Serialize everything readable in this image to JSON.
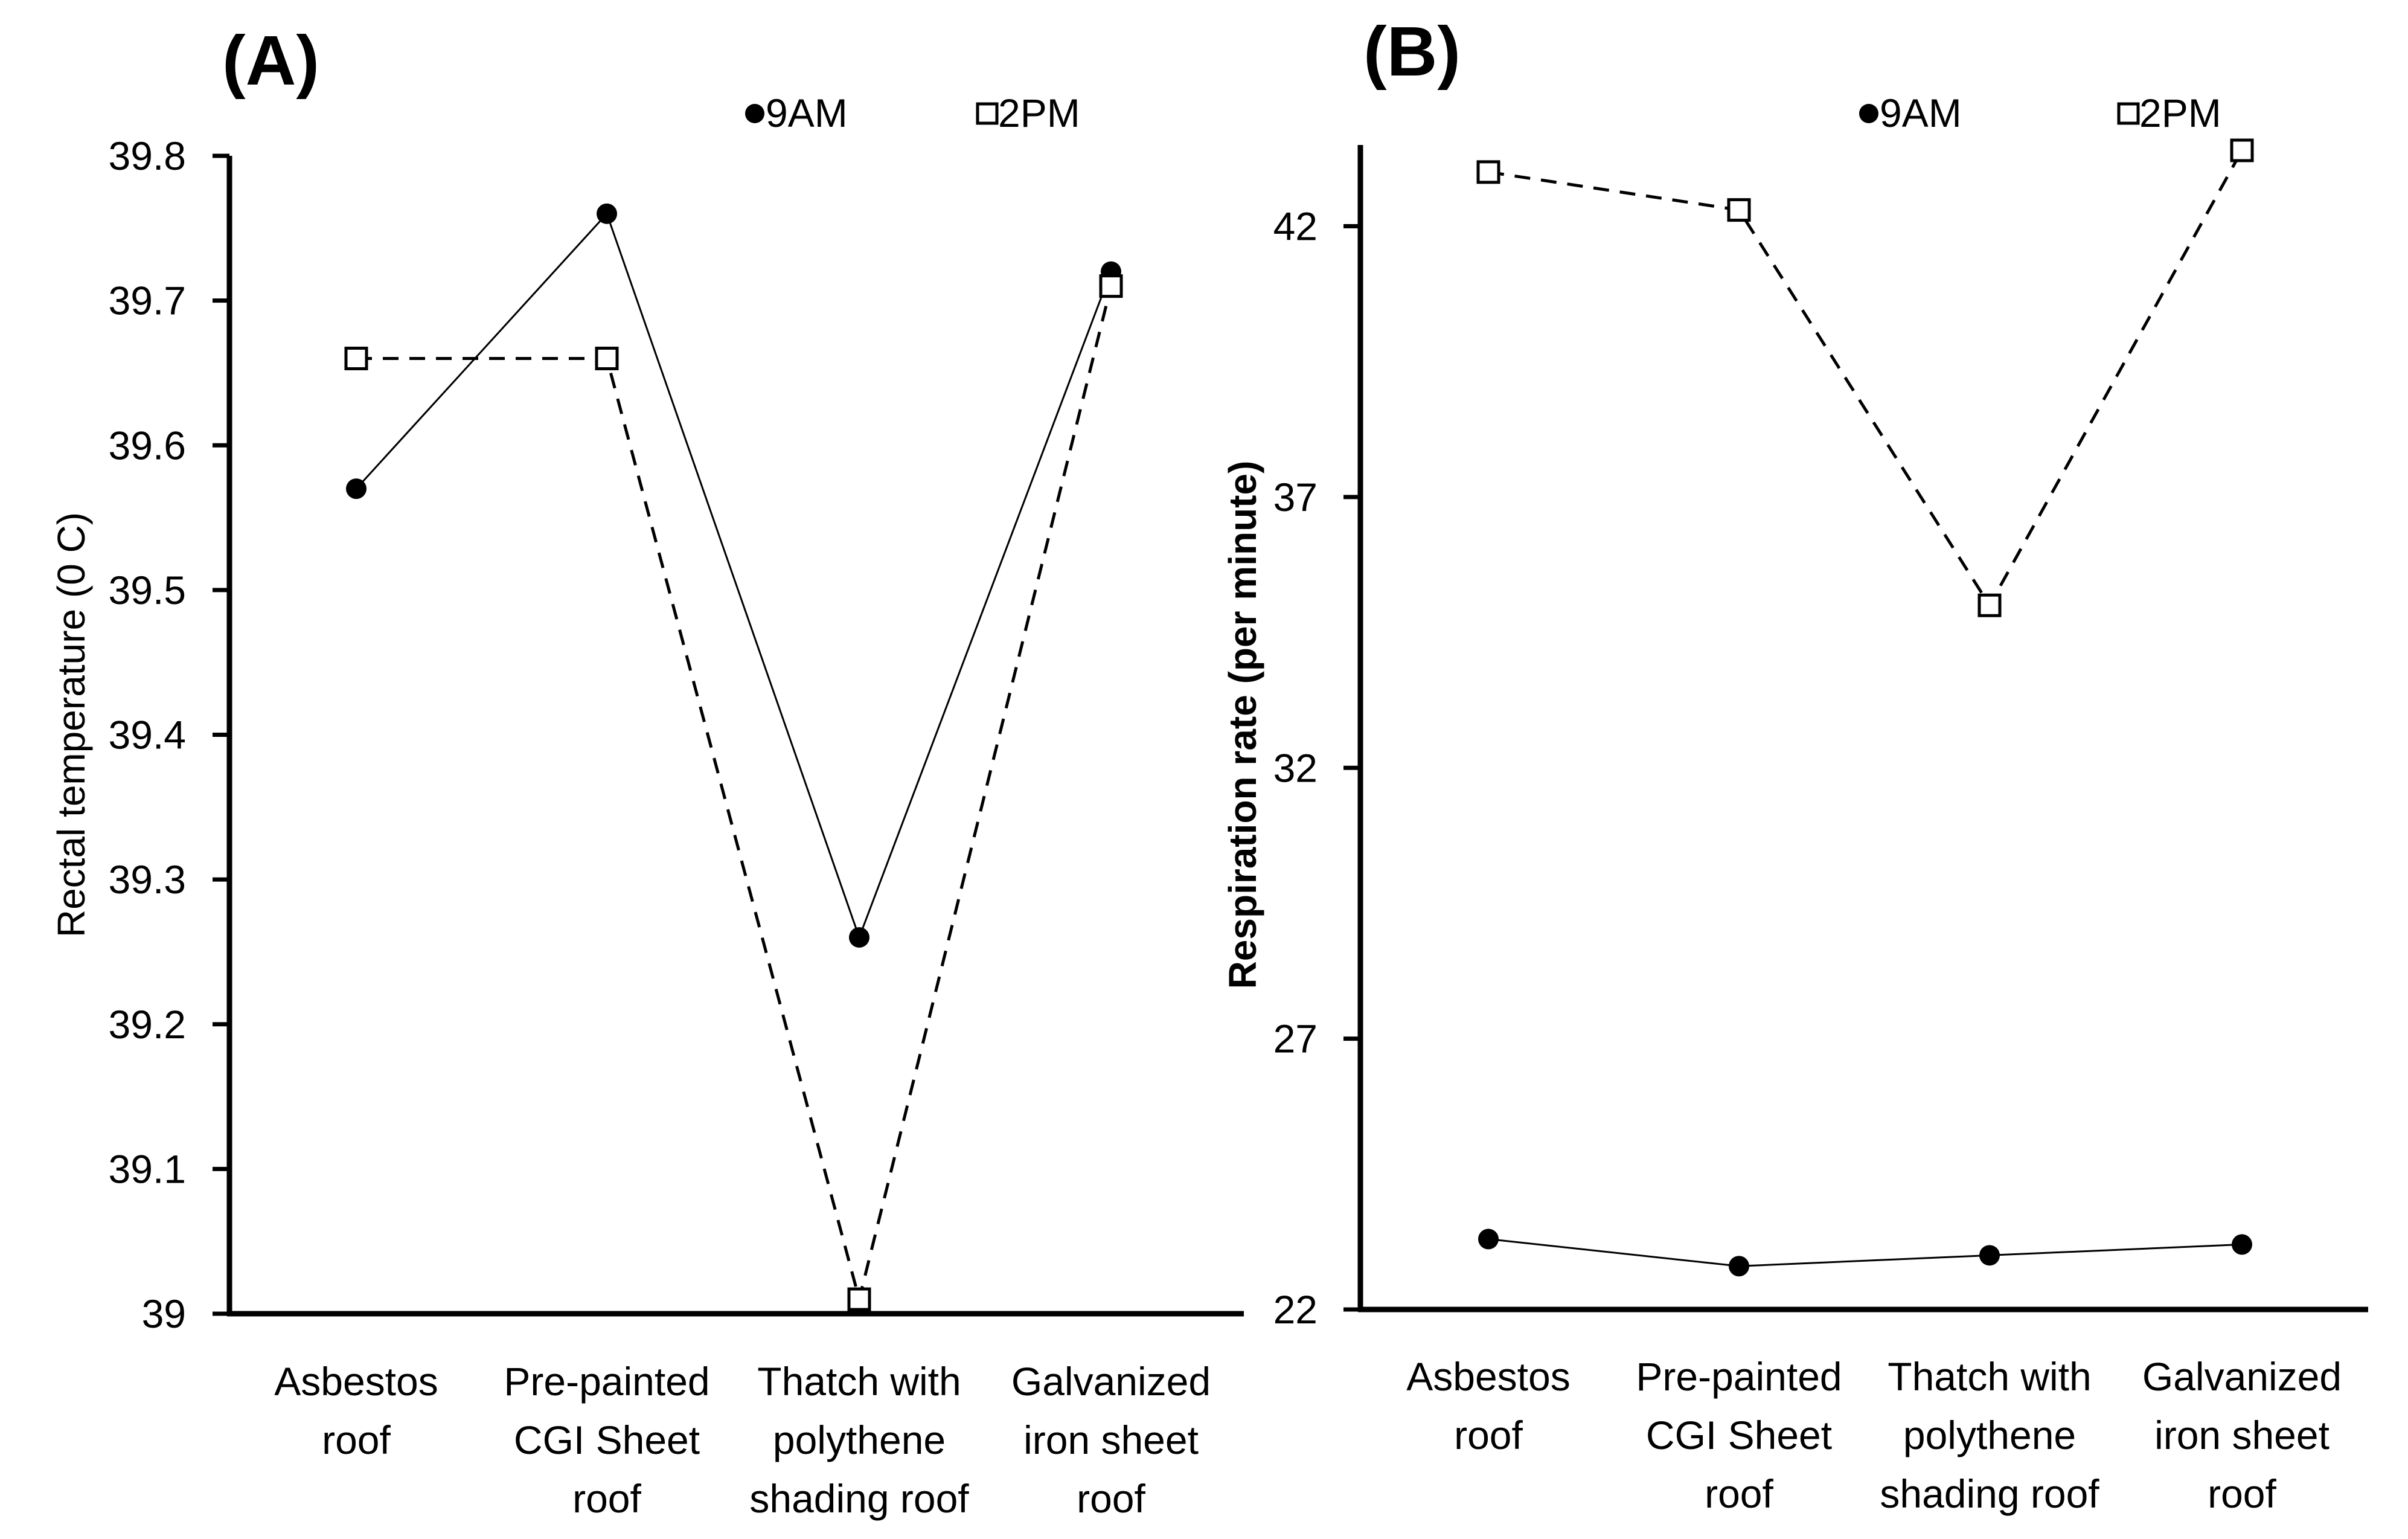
{
  "chart_data": [
    {
      "panel_label": "(A)",
      "type": "line",
      "ylabel": "Rectal temperature (0 C)",
      "xlabel": "",
      "categories": [
        [
          "Asbestos",
          "roof"
        ],
        [
          "Pre-painted",
          "CGI Sheet",
          "roof"
        ],
        [
          "Thatch with",
          "polythene",
          "shading roof"
        ],
        [
          "Galvanized",
          "iron sheet",
          "roof"
        ]
      ],
      "ylim": [
        39,
        39.8
      ],
      "yticks": [
        39,
        39.1,
        39.2,
        39.3,
        39.4,
        39.5,
        39.6,
        39.7,
        39.8
      ],
      "ytick_labels": [
        "39",
        "39.1",
        "39.2",
        "39.3",
        "39.4",
        "39.5",
        "39.6",
        "39.7",
        "39.8"
      ],
      "grid": false,
      "legend": "top",
      "series": [
        {
          "name": "9AM",
          "marker": "filled-circle",
          "line": "solid",
          "values": [
            39.57,
            39.76,
            39.26,
            39.72
          ]
        },
        {
          "name": "2PM",
          "marker": "open-square",
          "line": "dashed",
          "values": [
            39.66,
            39.66,
            39.01,
            39.71
          ]
        }
      ]
    },
    {
      "panel_label": "(B)",
      "type": "line",
      "ylabel": "Respiration rate (per minute)",
      "xlabel": "",
      "categories": [
        [
          "Asbestos",
          "roof"
        ],
        [
          "Pre-painted",
          "CGI Sheet",
          "roof"
        ],
        [
          "Thatch with",
          "polythene",
          "shading roof"
        ],
        [
          "Galvanized",
          "iron sheet",
          "roof"
        ]
      ],
      "ylim": [
        22,
        43.5
      ],
      "yticks": [
        22,
        27,
        32,
        37,
        42
      ],
      "ytick_labels": [
        "22",
        "27",
        "32",
        "37",
        "42"
      ],
      "grid": false,
      "legend": "top-right",
      "series": [
        {
          "name": "9AM",
          "marker": "filled-circle",
          "line": "solid",
          "values": [
            23.3,
            22.8,
            23.0,
            23.2
          ]
        },
        {
          "name": "2PM",
          "marker": "open-square",
          "line": "dashed",
          "values": [
            43.0,
            42.3,
            35.0,
            43.4
          ]
        }
      ]
    }
  ]
}
